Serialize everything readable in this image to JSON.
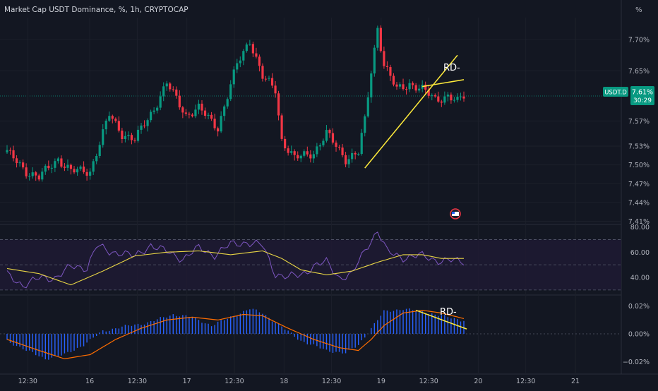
{
  "header": {
    "title": "Market Cap USDT Dominance, %, 1h, CRYPTOCAP",
    "unit": "%"
  },
  "price_axis": {
    "ticks": [
      "7.70%",
      "7.65%",
      "7.57%",
      "7.53%",
      "7.50%",
      "7.47%",
      "7.44%",
      "7.41%"
    ],
    "symbol_badge": "USDT.D",
    "last_price": "7.61%",
    "countdown": "30:29"
  },
  "rsi_axis": {
    "ticks": [
      "80.00",
      "60.00",
      "40.00"
    ]
  },
  "macd_axis": {
    "ticks": [
      "0.02%",
      "0.00%",
      "−0.02%"
    ]
  },
  "time_axis": {
    "ticks": [
      "12:30",
      "16",
      "12:30",
      "17",
      "12:30",
      "18",
      "12:30",
      "19",
      "12:30",
      "20",
      "12:30",
      "21"
    ]
  },
  "annotations": {
    "price_label": "RD-",
    "macd_label": "RD-"
  },
  "colors": {
    "background": "#131722",
    "up": "#089981",
    "down": "#f23645",
    "trendline": "#ffeb3b",
    "rsi_line": "#7e57c2",
    "rsi_ma": "#e8d545",
    "macd_hist": "#2962ff",
    "macd_signal": "#ff6d00",
    "axis_text": "#b2b5be",
    "badge": "#089981"
  },
  "chart_data": [
    {
      "type": "candlestick",
      "title": "Market Cap USDT Dominance, %, 1h, CRYPTOCAP",
      "ylabel": "%",
      "ylim": [
        7.405,
        7.735
      ],
      "x": [
        "16 12:30",
        "17 12:30",
        "18 12:30",
        "19 12:30",
        "20 12:30",
        "21"
      ],
      "last_value": 7.61,
      "close_path": [
        [
          0,
          7.52
        ],
        [
          6,
          7.49
        ],
        [
          10,
          7.48
        ],
        [
          16,
          7.51
        ],
        [
          20,
          7.49
        ],
        [
          26,
          7.49
        ],
        [
          32,
          7.58
        ],
        [
          36,
          7.55
        ],
        [
          40,
          7.54
        ],
        [
          46,
          7.59
        ],
        [
          50,
          7.63
        ],
        [
          56,
          7.58
        ],
        [
          60,
          7.59
        ],
        [
          66,
          7.56
        ],
        [
          72,
          7.66
        ],
        [
          76,
          7.7
        ],
        [
          80,
          7.64
        ],
        [
          84,
          7.62
        ],
        [
          86,
          7.54
        ],
        [
          90,
          7.51
        ],
        [
          96,
          7.52
        ],
        [
          100,
          7.55
        ],
        [
          106,
          7.51
        ],
        [
          110,
          7.52
        ],
        [
          112,
          7.57
        ],
        [
          114,
          7.65
        ],
        [
          116,
          7.72
        ],
        [
          118,
          7.66
        ],
        [
          122,
          7.62
        ],
        [
          126,
          7.63
        ],
        [
          130,
          7.62
        ],
        [
          134,
          7.605
        ],
        [
          138,
          7.61
        ],
        [
          141,
          7.6
        ],
        [
          143,
          7.61
        ]
      ],
      "trendlines": [
        {
          "label": "",
          "points": [
            [
              112,
              7.495
            ],
            [
              141,
              7.675
            ]
          ]
        },
        {
          "label": "RD-",
          "points": [
            [
              130,
              7.625
            ],
            [
              143,
              7.636
            ]
          ]
        }
      ]
    },
    {
      "type": "line",
      "title": "",
      "ylim": [
        26,
        82
      ],
      "bands": [
        30,
        50,
        70
      ],
      "series": [
        {
          "name": "",
          "points": [
            [
              0,
              42
            ],
            [
              5,
              34
            ],
            [
              10,
              39
            ],
            [
              15,
              40
            ],
            [
              20,
              48
            ],
            [
              25,
              48
            ],
            [
              28,
              65
            ],
            [
              32,
              60
            ],
            [
              36,
              60
            ],
            [
              40,
              56
            ],
            [
              45,
              66
            ],
            [
              50,
              60
            ],
            [
              55,
              55
            ],
            [
              60,
              63
            ],
            [
              65,
              58
            ],
            [
              70,
              66
            ],
            [
              75,
              68
            ],
            [
              80,
              65
            ],
            [
              84,
              43
            ],
            [
              88,
              40
            ],
            [
              92,
              42
            ],
            [
              96,
              49
            ],
            [
              100,
              52
            ],
            [
              104,
              40
            ],
            [
              108,
              42
            ],
            [
              110,
              52
            ],
            [
              113,
              66
            ],
            [
              116,
              77
            ],
            [
              119,
              60
            ],
            [
              124,
              56
            ],
            [
              130,
              57
            ],
            [
              136,
              53
            ],
            [
              140,
              53
            ],
            [
              143,
              53
            ]
          ]
        },
        {
          "name": "",
          "points": [
            [
              0,
              47
            ],
            [
              10,
              43
            ],
            [
              20,
              34
            ],
            [
              30,
              45
            ],
            [
              40,
              57
            ],
            [
              50,
              60
            ],
            [
              60,
              61
            ],
            [
              70,
              58
            ],
            [
              80,
              61
            ],
            [
              86,
              55
            ],
            [
              92,
              46
            ],
            [
              100,
              42
            ],
            [
              108,
              45
            ],
            [
              116,
              52
            ],
            [
              124,
              58
            ],
            [
              130,
              58
            ],
            [
              136,
              55
            ],
            [
              143,
              55
            ]
          ]
        }
      ]
    },
    {
      "type": "histogram",
      "title": "",
      "ylim": [
        -0.028,
        0.028
      ],
      "series": [
        {
          "name": "",
          "points": [
            [
              0,
              -0.005
            ],
            [
              6,
              -0.012
            ],
            [
              12,
              -0.018
            ],
            [
              18,
              -0.015
            ],
            [
              24,
              -0.008
            ],
            [
              30,
              0.002
            ],
            [
              36,
              0.005
            ],
            [
              44,
              0.008
            ],
            [
              52,
              0.014
            ],
            [
              58,
              0.012
            ],
            [
              64,
              0.006
            ],
            [
              70,
              0.012
            ],
            [
              76,
              0.018
            ],
            [
              80,
              0.015
            ],
            [
              86,
              0.005
            ],
            [
              92,
              -0.005
            ],
            [
              100,
              -0.012
            ],
            [
              106,
              -0.014
            ],
            [
              110,
              -0.008
            ],
            [
              114,
              0.004
            ],
            [
              118,
              0.016
            ],
            [
              124,
              0.018
            ],
            [
              130,
              0.016
            ],
            [
              136,
              0.013
            ],
            [
              142,
              0.01
            ],
            [
              143,
              0.01
            ]
          ]
        },
        {
          "name": "",
          "points": [
            [
              0,
              -0.004
            ],
            [
              10,
              -0.012
            ],
            [
              18,
              -0.018
            ],
            [
              26,
              -0.015
            ],
            [
              34,
              -0.004
            ],
            [
              42,
              0.004
            ],
            [
              50,
              0.01
            ],
            [
              58,
              0.012
            ],
            [
              66,
              0.01
            ],
            [
              74,
              0.014
            ],
            [
              80,
              0.013
            ],
            [
              88,
              0.004
            ],
            [
              96,
              -0.004
            ],
            [
              104,
              -0.01
            ],
            [
              110,
              -0.012
            ],
            [
              114,
              -0.004
            ],
            [
              118,
              0.006
            ],
            [
              124,
              0.015
            ],
            [
              130,
              0.017
            ],
            [
              136,
              0.015
            ],
            [
              143,
              0.011
            ]
          ]
        }
      ],
      "trendlines": [
        {
          "label": "RD-",
          "points": [
            [
              128,
              0.017
            ],
            [
              143,
              0.0035
            ]
          ]
        }
      ]
    }
  ]
}
